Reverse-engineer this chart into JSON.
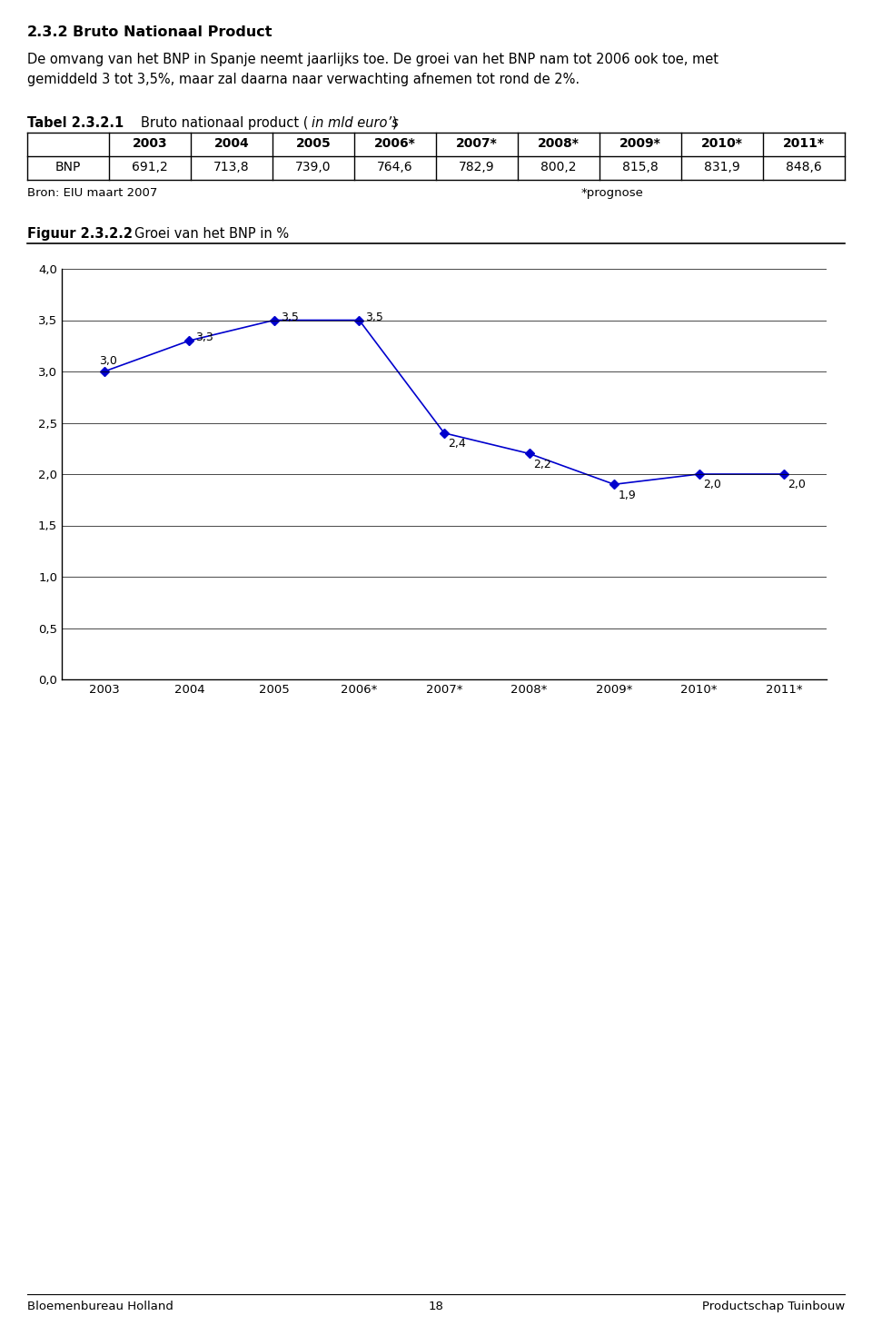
{
  "page_title_num": "2.3.2",
  "page_title": "Bruto Nationaal Product",
  "para1": "De omvang van het BNP in Spanje neemt jaarlijks toe. De groei van het BNP nam tot 2006 ook toe, met",
  "para2": "gemiddeld 3 tot 3,5%, maar zal daarna naar verwachting afnemen tot rond de 2%.",
  "table_label_num": "Tabel 2.3.2.1",
  "table_label_normal": "Bruto nationaal product (",
  "table_label_italic": "in mld euro’s",
  "table_label_close": ")",
  "table_headers": [
    "",
    "2003",
    "2004",
    "2005",
    "2006*",
    "2007*",
    "2008*",
    "2009*",
    "2010*",
    "2011*"
  ],
  "table_row_label": "BNP",
  "table_values": [
    "691,2",
    "713,8",
    "739,0",
    "764,6",
    "782,9",
    "800,2",
    "815,8",
    "831,9",
    "848,6"
  ],
  "table_source": "Bron: EIU maart 2007",
  "table_prognose": "*prognose",
  "fig_label_num": "Figuur 2.3.2.2",
  "fig_label_text": "Groei van het BNP in %",
  "chart_x_labels": [
    "2003",
    "2004",
    "2005",
    "2006*",
    "2007*",
    "2008*",
    "2009*",
    "2010*",
    "2011*"
  ],
  "chart_y_values": [
    3.0,
    3.3,
    3.5,
    3.5,
    2.4,
    2.2,
    1.9,
    2.0,
    2.0
  ],
  "chart_y_labels": [
    "3,0",
    "3,3",
    "3,5",
    "3,5",
    "2,4",
    "2,2",
    "1,9",
    "2,0",
    "2,0"
  ],
  "chart_ylim": [
    0.0,
    4.0
  ],
  "chart_yticks": [
    0.0,
    0.5,
    1.0,
    1.5,
    2.0,
    2.5,
    3.0,
    3.5,
    4.0
  ],
  "chart_ytick_labels": [
    "0,0",
    "0,5",
    "1,0",
    "1,5",
    "2,0",
    "2,5",
    "3,0",
    "3,5",
    "4,0"
  ],
  "line_color": "#0000CD",
  "marker_color": "#0000CD",
  "marker_style": "D",
  "footer_left": "Bloemenbureau Holland",
  "footer_center": "18",
  "footer_right": "Productschap Tuinbouw",
  "bg_color": "#ffffff",
  "text_color": "#000000"
}
